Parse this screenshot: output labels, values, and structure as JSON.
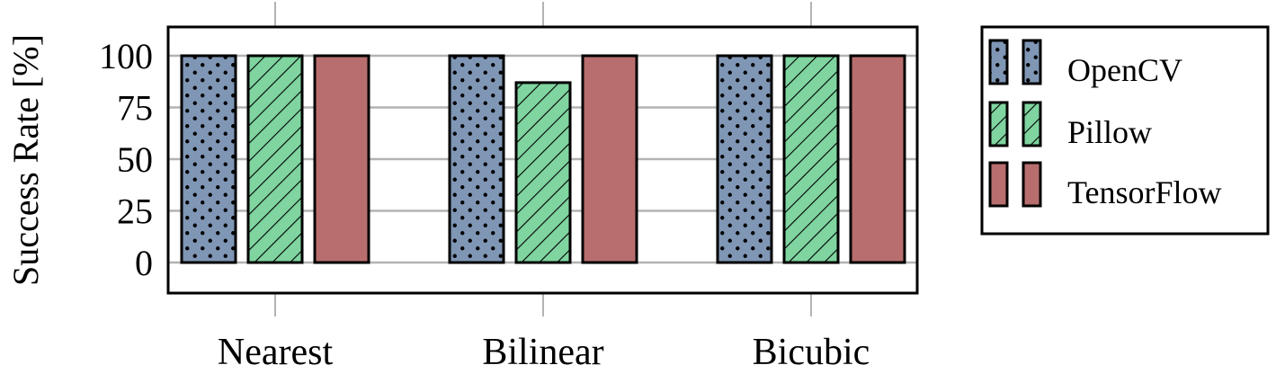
{
  "chart_data": {
    "type": "bar",
    "categories": [
      "Nearest",
      "Bilinear",
      "Bicubic"
    ],
    "series": [
      {
        "name": "OpenCV",
        "values": [
          100,
          100,
          100
        ],
        "color": "#7f96b5",
        "pattern": "dots"
      },
      {
        "name": "Pillow",
        "values": [
          100,
          87,
          100
        ],
        "color": "#7fd49f",
        "pattern": "diagonal-lines"
      },
      {
        "name": "TensorFlow",
        "values": [
          100,
          100,
          100
        ],
        "color": "#b86e6e",
        "pattern": "solid"
      }
    ],
    "ylabel": "Success Rate [%]",
    "xlabel": "",
    "ylim": [
      -15,
      115
    ],
    "yticks": [
      0,
      25,
      50,
      75,
      100
    ],
    "grid": true,
    "legend_position": "right"
  }
}
